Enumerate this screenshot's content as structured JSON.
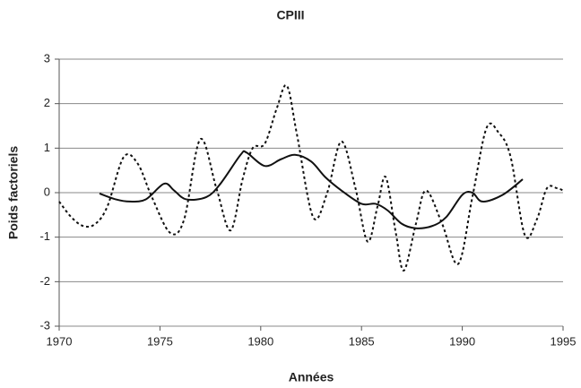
{
  "chart_data": {
    "type": "line",
    "title": "CPIII",
    "x_label": "Années",
    "y_label": "Poids factoriels",
    "xlim": [
      1970,
      1995
    ],
    "xticks": [
      1970,
      1975,
      1980,
      1985,
      1990,
      1995
    ],
    "ylim": [
      -3,
      3
    ],
    "yticks": [
      -3,
      -2,
      -1,
      0,
      1,
      2,
      3
    ],
    "grid": true,
    "series": [
      {
        "color": "#111111",
        "line_style": "dotted",
        "x": [
          1970,
          1970.6,
          1971.2,
          1971.8,
          1972.4,
          1973.2,
          1973.9,
          1974.6,
          1975.5,
          1976.2,
          1977,
          1977.8,
          1978.5,
          1979.1,
          1979.6,
          1980.2,
          1980.8,
          1981.3,
          1981.8,
          1982.6,
          1983.3,
          1984,
          1984.7,
          1985.3,
          1985.8,
          1986.2,
          1986.7,
          1987.1,
          1987.7,
          1988.2,
          1989,
          1989.8,
          1990.5,
          1991.2,
          1991.8,
          1992.4,
          1993.1,
          1993.7,
          1994.2,
          1994.7,
          1995
        ],
        "values": [
          -0.2,
          -0.55,
          -0.75,
          -0.7,
          -0.3,
          0.8,
          0.65,
          -0.1,
          -0.9,
          -0.6,
          1.2,
          0.1,
          -0.85,
          0.3,
          1.0,
          1.1,
          1.9,
          2.4,
          1.3,
          -0.55,
          0.0,
          1.15,
          0.1,
          -1.1,
          -0.3,
          0.35,
          -0.9,
          -1.75,
          -0.7,
          0.05,
          -0.7,
          -1.6,
          -0.1,
          1.45,
          1.35,
          0.8,
          -0.95,
          -0.6,
          0.1,
          0.1,
          0.05
        ]
      },
      {
        "color": "#111111",
        "line_style": "solid",
        "x": [
          1972,
          1972.8,
          1973.5,
          1974.3,
          1975.2,
          1975.7,
          1976.3,
          1977.3,
          1978,
          1979,
          1979.3,
          1980.2,
          1981,
          1981.7,
          1982.5,
          1983.2,
          1984,
          1985,
          1985.7,
          1986.3,
          1987,
          1987.7,
          1988.5,
          1989.2,
          1990,
          1990.5,
          1991,
          1992,
          1993
        ],
        "values": [
          -0.02,
          -0.15,
          -0.2,
          -0.15,
          0.2,
          0.05,
          -0.15,
          -0.1,
          0.2,
          0.85,
          0.9,
          0.6,
          0.75,
          0.85,
          0.7,
          0.35,
          0.05,
          -0.25,
          -0.25,
          -0.4,
          -0.7,
          -0.8,
          -0.75,
          -0.55,
          -0.05,
          0.0,
          -0.2,
          -0.05,
          0.3
        ]
      }
    ]
  }
}
